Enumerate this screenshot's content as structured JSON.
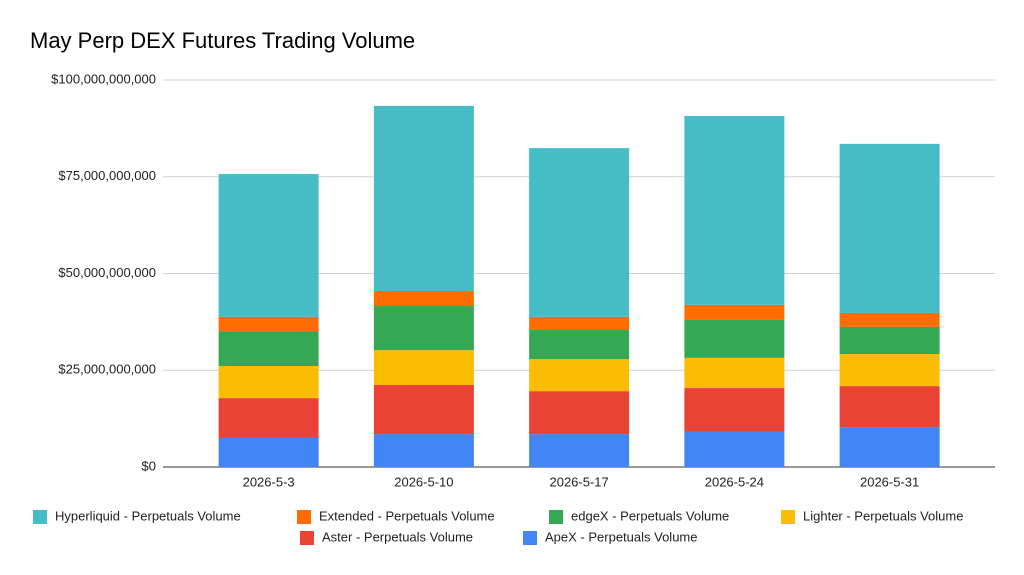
{
  "chart_data": {
    "type": "stacked_bar",
    "title": "May Perp DEX Futures Trading Volume",
    "categories": [
      "2026-5-3",
      "2026-5-10",
      "2026-5-17",
      "2026-5-24",
      "2026-5-31"
    ],
    "series": [
      {
        "name": "Hyperliquid - Perpetuals Volume",
        "color": "#46bdc6",
        "values": [
          36900000000,
          47800000000,
          43600000000,
          48800000000,
          43700000000
        ]
      },
      {
        "name": "Extended - Perpetuals Volume",
        "color": "#ff6d01",
        "values": [
          3700000000,
          3900000000,
          3400000000,
          3900000000,
          3600000000
        ]
      },
      {
        "name": "edgeX - Perpetuals Volume",
        "color": "#34a853",
        "values": [
          9000000000,
          11400000000,
          7500000000,
          9800000000,
          7000000000
        ]
      },
      {
        "name": "Lighter - Perpetuals Volume",
        "color": "#fbbc04",
        "values": [
          8300000000,
          9000000000,
          8300000000,
          7800000000,
          8300000000
        ]
      },
      {
        "name": "Aster - Perpetuals Volume",
        "color": "#ea4335",
        "values": [
          10300000000,
          12700000000,
          11100000000,
          11100000000,
          10600000000
        ]
      },
      {
        "name": "ApeX - Perpetuals Volume",
        "color": "#4285f4",
        "values": [
          7500000000,
          8500000000,
          8500000000,
          9300000000,
          10300000000
        ]
      }
    ],
    "ylim": [
      0,
      100000000000
    ],
    "yticks": [
      {
        "value": 0,
        "label": "$0"
      },
      {
        "value": 25000000000,
        "label": "$25,000,000,000"
      },
      {
        "value": 50000000000,
        "label": "$50,000,000,000"
      },
      {
        "value": 75000000000,
        "label": "$75,000,000,000"
      },
      {
        "value": 100000000000,
        "label": "$100,000,000,000"
      }
    ],
    "grid": true,
    "legend": "bottom"
  }
}
